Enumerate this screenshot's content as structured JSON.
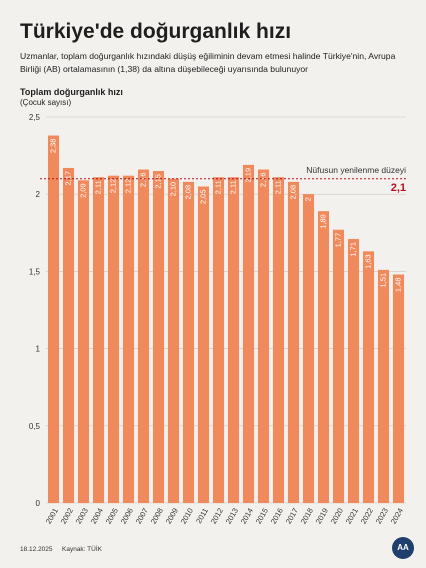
{
  "header": {
    "title": "Türkiye'de doğurganlık hızı",
    "subtitle": "Uzmanlar, toplam doğurganlık hızındaki düşüş eğiliminin devam etmesi halinde Türkiye'nin, Avrupa Birliği (AB) ortalamasının (1,38) da altına düşebileceği uyarısında bulunuyor"
  },
  "footer": {
    "date": "18.12.2025",
    "source": "Kaynak: TÜİK",
    "logo_text": "AA"
  },
  "chart_data": {
    "type": "bar",
    "ylabel": "Toplam doğurganlık hızı",
    "yunit": "(Çocuk sayısı)",
    "ylim": [
      0,
      2.5
    ],
    "yticks": [
      0,
      0.5,
      1,
      1.5,
      2,
      2.5
    ],
    "ytick_labels": [
      "0",
      "0,5",
      "1",
      "1,5",
      "2",
      "2,5"
    ],
    "grid": true,
    "bar_color": "#f08a5d",
    "grid_color": "#c9c4bd",
    "categories": [
      "2001",
      "2002",
      "2003",
      "2004",
      "2005",
      "2006",
      "2007",
      "2008",
      "2009",
      "2010",
      "2011",
      "2012",
      "2013",
      "2014",
      "2015",
      "2016",
      "2017",
      "2018",
      "2019",
      "2020",
      "2021",
      "2022",
      "2023",
      "2024"
    ],
    "values": [
      2.38,
      2.17,
      2.09,
      2.11,
      2.12,
      2.12,
      2.16,
      2.15,
      2.1,
      2.08,
      2.05,
      2.11,
      2.11,
      2.19,
      2.16,
      2.11,
      2.08,
      2.0,
      1.89,
      1.77,
      1.71,
      1.63,
      1.51,
      1.48
    ],
    "value_labels": [
      "2,38",
      "2,17",
      "2,09",
      "2,11",
      "2,12",
      "2,12",
      "2,16",
      "2,15",
      "2,10",
      "2,08",
      "2,05",
      "2,11",
      "2,11",
      "2,19",
      "2,16",
      "2,11",
      "2,08",
      "2",
      "1,89",
      "1,77",
      "1,71",
      "1,63",
      "1,51",
      "1,48"
    ],
    "reference_line": {
      "value": 2.1,
      "label": "Nüfusun yenilenme düzeyi",
      "value_label": "2,1",
      "color": "#b3121f"
    }
  }
}
